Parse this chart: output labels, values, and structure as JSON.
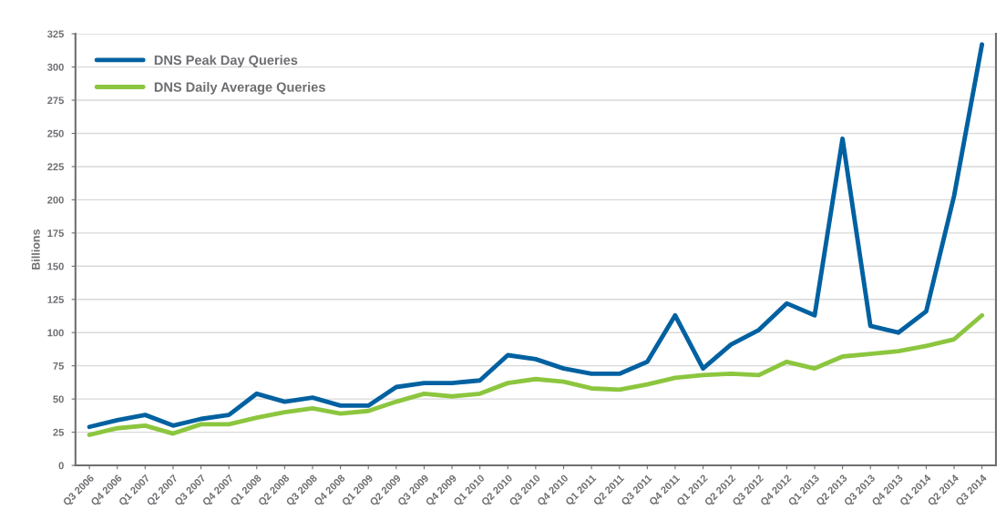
{
  "chart_data": {
    "type": "line",
    "ylabel": "Billions",
    "categories": [
      "Q3 2006",
      "Q4 2006",
      "Q1 2007",
      "Q2 2007",
      "Q3 2007",
      "Q4 2007",
      "Q1 2008",
      "Q2 2008",
      "Q3 2008",
      "Q4 2008",
      "Q1 2009",
      "Q2 2009",
      "Q3 2009",
      "Q4 2009",
      "Q1 2010",
      "Q2 2010",
      "Q3 2010",
      "Q4 2010",
      "Q1 2011",
      "Q2 2011",
      "Q3 2011",
      "Q4 2011",
      "Q1 2012",
      "Q2 2012",
      "Q3 2012",
      "Q4 2012",
      "Q1 2013",
      "Q2 2013",
      "Q3 2013",
      "Q4 2013",
      "Q1 2014",
      "Q2 2014",
      "Q3 2014"
    ],
    "series": [
      {
        "name": "DNS Peak Day Queries",
        "color": "#0061a1",
        "values": [
          29,
          34,
          38,
          30,
          35,
          38,
          54,
          48,
          51,
          45,
          45,
          59,
          62,
          62,
          64,
          83,
          80,
          73,
          69,
          69,
          78,
          113,
          73,
          91,
          102,
          122,
          113,
          246,
          105,
          100,
          116,
          203,
          317
        ]
      },
      {
        "name": "DNS Daily Average Queries",
        "color": "#8cc63f",
        "values": [
          23,
          28,
          30,
          24,
          31,
          31,
          36,
          40,
          43,
          39,
          41,
          48,
          54,
          52,
          54,
          62,
          65,
          63,
          58,
          57,
          61,
          66,
          68,
          69,
          68,
          78,
          73,
          82,
          84,
          86,
          90,
          95,
          113
        ]
      }
    ],
    "ylim": [
      0,
      325
    ],
    "yticks": [
      0,
      25,
      50,
      75,
      100,
      125,
      150,
      175,
      200,
      225,
      250,
      275,
      300,
      325
    ],
    "grid": "y",
    "legend": "top left",
    "marker": "none",
    "line_style": "solid"
  }
}
